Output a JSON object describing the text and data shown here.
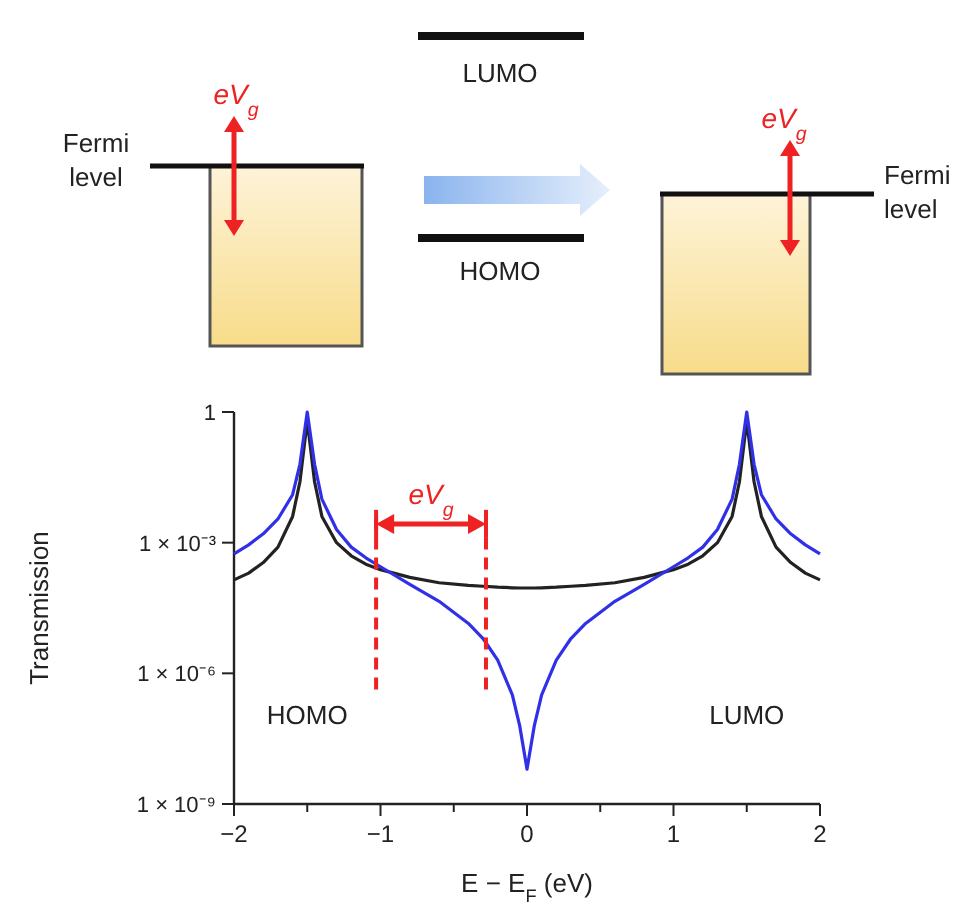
{
  "chart_data": {
    "type": "line",
    "log": "y",
    "xlabel": "E − E$_{F}$ (eV)",
    "ylabel": "Transmission",
    "xlim": [
      -2,
      2
    ],
    "ylim": [
      1e-09,
      1
    ],
    "xticks": [
      {
        "value": -2,
        "label": "−2"
      },
      {
        "value": -1.5,
        "label": null
      },
      {
        "value": -1,
        "label": "−1"
      },
      {
        "value": -0.5,
        "label": null
      },
      0,
      {
        "value": 0.5,
        "label": null
      },
      1,
      {
        "value": 1.5,
        "label": null
      },
      2
    ],
    "yticks": [
      {
        "value": 1e-09,
        "label": "1 × 10⁻⁹"
      },
      {
        "value": 1e-06,
        "label": "1 × 10⁻⁶"
      },
      {
        "value": 0.001,
        "label": "1 × 10⁻³"
      },
      1
    ],
    "grid": false,
    "marker": "none",
    "line_style": "solid",
    "x": [
      -2,
      -1.9,
      -1.8,
      -1.7,
      -1.6,
      -1.55,
      -1.5,
      -1.45,
      -1.4,
      -1.3,
      -1.2,
      -1.1,
      -1,
      -0.8,
      -0.6,
      -0.4,
      -0.3,
      -0.2,
      -0.1,
      -0.05,
      0,
      0.05,
      0.1,
      0.2,
      0.3,
      0.4,
      0.6,
      0.8,
      1,
      1.1,
      1.2,
      1.3,
      1.4,
      1.45,
      1.5,
      1.55,
      1.6,
      1.7,
      1.8,
      1.9,
      2
    ],
    "series": [
      {
        "color": "#222222",
        "values": [
          0.00014,
          0.0002,
          0.00035,
          0.00079,
          0.004,
          0.025,
          0.63,
          0.025,
          0.004,
          0.001,
          0.0005,
          0.00032,
          0.00024,
          0.00016,
          0.00012,
          0.000105,
          0.0001,
          9.5e-05,
          9.2e-05,
          9.1e-05,
          9.1e-05,
          9.1e-05,
          9.2e-05,
          9.5e-05,
          0.0001,
          0.000105,
          0.00012,
          0.00016,
          0.00024,
          0.00032,
          0.0005,
          0.001,
          0.004,
          0.025,
          0.63,
          0.025,
          0.004,
          0.00079,
          0.00035,
          0.0002,
          0.00014
        ]
      },
      {
        "color": "#3030e8",
        "values": [
          0.00055,
          0.00089,
          0.0016,
          0.0035,
          0.0126,
          0.063,
          1,
          0.063,
          0.01,
          0.002,
          0.00079,
          0.00045,
          0.00028,
          0.00011,
          4.5e-05,
          1.4e-05,
          6.3e-06,
          2e-06,
          3.2e-07,
          6.3e-08,
          6.3e-09,
          6.3e-08,
          3.2e-07,
          2e-06,
          6.3e-06,
          1.4e-05,
          4.5e-05,
          0.00011,
          0.00028,
          0.00045,
          0.00079,
          0.002,
          0.01,
          0.063,
          1,
          0.063,
          0.0126,
          0.0035,
          0.0016,
          0.00089,
          0.00055
        ]
      }
    ],
    "ref_lines": [
      {
        "axis": "x",
        "value": -1.03,
        "color": "#ee2222",
        "line_style": "dashed"
      },
      {
        "axis": "x",
        "value": -0.28,
        "color": "#ee2222",
        "line_style": "dashed"
      }
    ],
    "annotations": [
      "Fermi level",
      "eV$_{g}$",
      "LUMO",
      "HOMO",
      "eV$_{g}$",
      "Fermi level",
      "eV$_{g}$",
      "HOMO",
      "LUMO"
    ]
  }
}
